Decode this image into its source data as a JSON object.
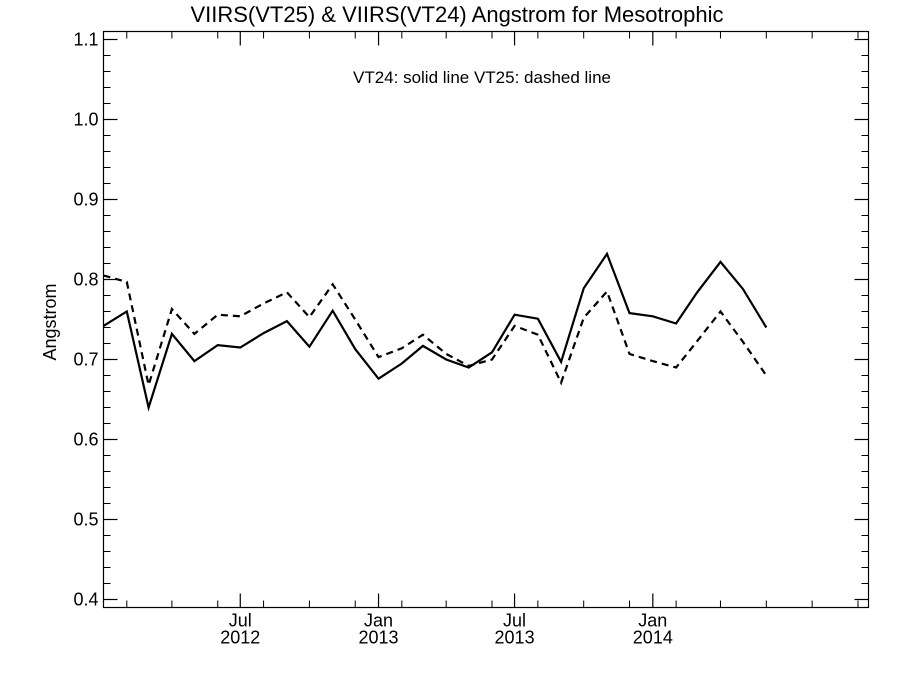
{
  "chart_data": {
    "type": "line",
    "title": "VIIRS(VT25) & VIIRS(VT24)  Angstrom for Mesotrophic",
    "ylabel": "Angstrom",
    "xlabel": "",
    "annotation": "VT24: solid line   VT25: dashed line",
    "ylim": [
      0.39,
      1.11
    ],
    "xlim": [
      "2012-01-01",
      "2014-10-15"
    ],
    "grid": false,
    "y_ticks": [
      0.4,
      0.5,
      0.6,
      0.7,
      0.8,
      0.9,
      1.0,
      1.1
    ],
    "y_tick_labels": [
      "0.4",
      "0.5",
      "0.6",
      "0.7",
      "0.8",
      "0.9",
      "1.0",
      "1.1"
    ],
    "x_tick_labels": [
      {
        "date": "2012-07-01",
        "month": "Jul",
        "year": "2012"
      },
      {
        "date": "2013-01-01",
        "month": "Jan",
        "year": "2013"
      },
      {
        "date": "2013-07-01",
        "month": "Jul",
        "year": "2013"
      },
      {
        "date": "2014-01-01",
        "month": "Jan",
        "year": "2014"
      }
    ],
    "x_minor_ticks": [
      "2012-02-01",
      "2012-04-01",
      "2012-06-01",
      "2012-08-01",
      "2012-10-01",
      "2012-12-01",
      "2013-02-01",
      "2013-04-01",
      "2013-06-01",
      "2013-08-01",
      "2013-10-01",
      "2013-12-01",
      "2014-02-01",
      "2014-04-01",
      "2014-06-01",
      "2014-08-01",
      "2014-10-01"
    ],
    "x": [
      "2012-01-01",
      "2012-02-01",
      "2012-03-01",
      "2012-04-01",
      "2012-05-01",
      "2012-06-01",
      "2012-07-01",
      "2012-08-01",
      "2012-09-01",
      "2012-10-01",
      "2012-11-01",
      "2012-12-01",
      "2013-01-01",
      "2013-02-01",
      "2013-03-01",
      "2013-04-01",
      "2013-05-01",
      "2013-06-01",
      "2013-07-01",
      "2013-08-01",
      "2013-09-01",
      "2013-10-01",
      "2013-11-01",
      "2013-12-01",
      "2014-01-01",
      "2014-02-01",
      "2014-03-01",
      "2014-04-01",
      "2014-05-01",
      "2014-06-01",
      "2014-07-01",
      "2014-08-01",
      "2014-09-01",
      "2014-10-01"
    ],
    "series": [
      {
        "style": "solid",
        "values": [
          0.742,
          0.76,
          0.64,
          0.732,
          0.698,
          0.718,
          0.715,
          0.733,
          0.748,
          0.716,
          0.761,
          0.713,
          0.676,
          0.695,
          0.717,
          0.7,
          0.69,
          0.709,
          0.756,
          0.751,
          0.697,
          0.789,
          0.832,
          0.758,
          0.754,
          0.745,
          0.784,
          0.822,
          0.788,
          0.74,
          null,
          null,
          null,
          null
        ]
      },
      {
        "style": "dashed",
        "values": [
          0.805,
          0.797,
          0.668,
          0.763,
          0.732,
          0.756,
          0.754,
          0.77,
          0.784,
          0.753,
          0.794,
          0.75,
          0.703,
          0.714,
          0.731,
          0.707,
          0.692,
          0.7,
          0.742,
          0.731,
          0.671,
          0.752,
          0.785,
          0.707,
          0.698,
          0.69,
          0.723,
          0.76,
          0.722,
          0.68,
          null,
          null,
          null,
          null
        ]
      }
    ]
  }
}
